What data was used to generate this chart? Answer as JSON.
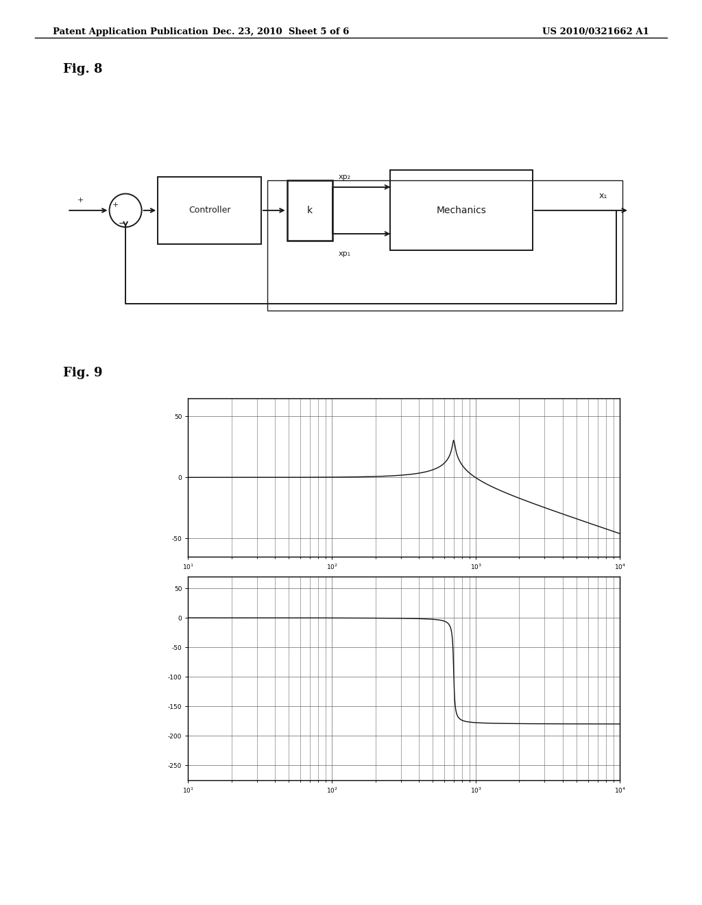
{
  "header_left": "Patent Application Publication",
  "header_center": "Dec. 23, 2010  Sheet 5 of 6",
  "header_right": "US 2010/0321662 A1",
  "fig8_label": "Fig. 8",
  "fig9_label": "Fig. 9",
  "bg_color": "#ffffff",
  "text_color": "#000000",
  "diagram_color": "#1a1a1a",
  "plot_bg": "#ffffff",
  "grid_color": "#666666",
  "line_color": "#111111",
  "mag_yticks": [
    50,
    0,
    -50
  ],
  "mag_ylim": [
    -65,
    65
  ],
  "phase_yticks": [
    50,
    0,
    -50,
    -100,
    -150,
    -200,
    -250
  ],
  "phase_ylim": [
    -275,
    70
  ],
  "xlog_min": 1,
  "xlog_max": 4
}
